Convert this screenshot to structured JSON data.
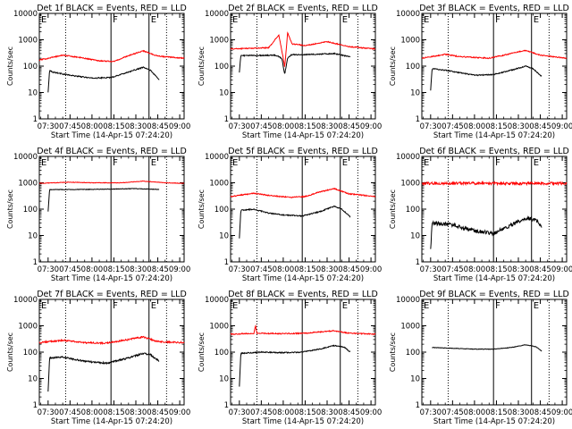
{
  "figure": {
    "background": "#ffffff",
    "axis_color": "#000000",
    "events_color": "#000000",
    "lld_color": "#ff0000",
    "x_ticks": [
      "07:30",
      "07:45",
      "08:00",
      "08:15",
      "08:30",
      "08:45",
      "09:00"
    ],
    "y_ticks": [
      "1",
      "10",
      "100",
      "1000",
      "10000"
    ],
    "ylabel": "Counts/sec",
    "xlabel": "Start Time (14-Apr-15 07:24:20)",
    "phase_labels": [
      "E",
      "F",
      "E"
    ]
  },
  "chart_data": [
    {
      "type": "line",
      "title": "Det 1f BLACK = Events, RED = LLD",
      "xlabel": "Start Time (14-Apr-15 07:24:20)",
      "ylabel": "Counts/sec",
      "xlim": [
        "07:24",
        "09:03"
      ],
      "ylim": [
        1,
        10000
      ],
      "yscale": "log",
      "markers": {
        "dotted": [
          "07:42",
          "08:51"
        ],
        "solid": [
          "08:13",
          "08:39"
        ]
      },
      "series": [
        {
          "color": "#000000",
          "noise": 0.02,
          "points": [
            [
              "07:30",
              10
            ],
            [
              "07:31",
              70
            ],
            [
              "07:33",
              60
            ],
            [
              "07:45",
              45
            ],
            [
              "08:00",
              35
            ],
            [
              "08:13",
              37
            ],
            [
              "08:25",
              60
            ],
            [
              "08:35",
              90
            ],
            [
              "08:40",
              70
            ],
            [
              "08:46",
              30
            ]
          ]
        },
        {
          "color": "#ff0000",
          "noise": 0.02,
          "points": [
            [
              "07:24",
              170
            ],
            [
              "07:40",
              260
            ],
            [
              "07:50",
              220
            ],
            [
              "08:05",
              160
            ],
            [
              "08:15",
              150
            ],
            [
              "08:25",
              250
            ],
            [
              "08:35",
              380
            ],
            [
              "08:45",
              240
            ],
            [
              "09:03",
              200
            ]
          ]
        }
      ]
    },
    {
      "type": "line",
      "title": "Det 2f BLACK = Events, RED = LLD",
      "xlabel": "Start Time (14-Apr-15 07:24:20)",
      "ylabel": "Counts/sec",
      "xlim": [
        "07:24",
        "09:03"
      ],
      "ylim": [
        1,
        10000
      ],
      "yscale": "log",
      "markers": {
        "dotted": [
          "07:42",
          "08:51"
        ],
        "solid": [
          "08:13",
          "08:39"
        ]
      },
      "series": [
        {
          "color": "#000000",
          "noise": 0.02,
          "points": [
            [
              "07:30",
              60
            ],
            [
              "07:31",
              250
            ],
            [
              "07:55",
              260
            ],
            [
              "07:59",
              200
            ],
            [
              "08:01",
              50
            ],
            [
              "08:03",
              200
            ],
            [
              "08:06",
              280
            ],
            [
              "08:13",
              270
            ],
            [
              "08:35",
              300
            ],
            [
              "08:42",
              250
            ],
            [
              "08:46",
              230
            ]
          ]
        },
        {
          "color": "#ff0000",
          "noise": 0.02,
          "points": [
            [
              "07:24",
              450
            ],
            [
              "07:50",
              500
            ],
            [
              "07:57",
              1500
            ],
            [
              "08:00",
              200
            ],
            [
              "08:01",
              90
            ],
            [
              "08:03",
              1800
            ],
            [
              "08:06",
              700
            ],
            [
              "08:15",
              600
            ],
            [
              "08:30",
              850
            ],
            [
              "08:45",
              550
            ],
            [
              "09:03",
              450
            ]
          ]
        }
      ]
    },
    {
      "type": "line",
      "title": "Det 3f BLACK = Events, RED = LLD",
      "xlabel": "Start Time (14-Apr-15 07:24:20)",
      "ylabel": "Counts/sec",
      "xlim": [
        "07:24",
        "09:03"
      ],
      "ylim": [
        1,
        10000
      ],
      "yscale": "log",
      "markers": {
        "dotted": [
          "07:42",
          "08:51"
        ],
        "solid": [
          "08:13",
          "08:39"
        ]
      },
      "series": [
        {
          "color": "#000000",
          "noise": 0.02,
          "points": [
            [
              "07:30",
              12
            ],
            [
              "07:31",
              80
            ],
            [
              "07:40",
              70
            ],
            [
              "08:00",
              45
            ],
            [
              "08:13",
              48
            ],
            [
              "08:25",
              70
            ],
            [
              "08:35",
              100
            ],
            [
              "08:40",
              80
            ],
            [
              "08:46",
              40
            ]
          ]
        },
        {
          "color": "#ff0000",
          "noise": 0.02,
          "points": [
            [
              "07:24",
              200
            ],
            [
              "07:40",
              280
            ],
            [
              "07:50",
              230
            ],
            [
              "08:10",
              200
            ],
            [
              "08:20",
              260
            ],
            [
              "08:35",
              400
            ],
            [
              "08:45",
              260
            ],
            [
              "09:03",
              200
            ]
          ]
        }
      ]
    },
    {
      "type": "line",
      "title": "Det 4f BLACK = Events, RED = LLD",
      "xlabel": "Start Time (14-Apr-15 07:24:20)",
      "ylabel": "Counts/sec",
      "xlim": [
        "07:24",
        "09:03"
      ],
      "ylim": [
        1,
        10000
      ],
      "yscale": "log",
      "markers": {
        "dotted": [
          "07:42",
          "08:51"
        ],
        "solid": [
          "08:13",
          "08:39"
        ]
      },
      "series": [
        {
          "color": "#000000",
          "noise": 0.01,
          "points": [
            [
              "07:30",
              80
            ],
            [
              "07:31",
              550
            ],
            [
              "08:00",
              560
            ],
            [
              "08:30",
              600
            ],
            [
              "08:46",
              560
            ]
          ]
        },
        {
          "color": "#ff0000",
          "noise": 0.01,
          "points": [
            [
              "07:24",
              950
            ],
            [
              "07:45",
              1050
            ],
            [
              "08:00",
              1000
            ],
            [
              "08:20",
              1000
            ],
            [
              "08:35",
              1150
            ],
            [
              "08:50",
              1000
            ],
            [
              "09:03",
              950
            ]
          ]
        }
      ]
    },
    {
      "type": "line",
      "title": "Det 5f BLACK = Events, RED = LLD",
      "xlabel": "Start Time (14-Apr-15 07:24:20)",
      "ylabel": "Counts/sec",
      "xlim": [
        "07:24",
        "09:03"
      ],
      "ylim": [
        1,
        10000
      ],
      "yscale": "log",
      "markers": {
        "dotted": [
          "07:42",
          "08:51"
        ],
        "solid": [
          "08:13",
          "08:39"
        ]
      },
      "series": [
        {
          "color": "#000000",
          "noise": 0.02,
          "points": [
            [
              "07:30",
              8
            ],
            [
              "07:31",
              90
            ],
            [
              "07:40",
              100
            ],
            [
              "07:50",
              70
            ],
            [
              "08:00",
              60
            ],
            [
              "08:13",
              55
            ],
            [
              "08:25",
              80
            ],
            [
              "08:35",
              130
            ],
            [
              "08:40",
              100
            ],
            [
              "08:46",
              50
            ]
          ]
        },
        {
          "color": "#ff0000",
          "noise": 0.02,
          "points": [
            [
              "07:24",
              300
            ],
            [
              "07:40",
              400
            ],
            [
              "07:50",
              330
            ],
            [
              "08:05",
              280
            ],
            [
              "08:15",
              300
            ],
            [
              "08:25",
              450
            ],
            [
              "08:35",
              600
            ],
            [
              "08:45",
              380
            ],
            [
              "09:03",
              300
            ]
          ]
        }
      ]
    },
    {
      "type": "line",
      "title": "Det 6f BLACK = Events, RED = LLD",
      "xlabel": "Start Time (14-Apr-15 07:24:20)",
      "ylabel": "Counts/sec",
      "xlim": [
        "07:24",
        "09:03"
      ],
      "ylim": [
        1,
        10000
      ],
      "yscale": "log",
      "markers": {
        "dotted": [
          "07:42",
          "08:51"
        ],
        "solid": [
          "08:13",
          "08:39"
        ]
      },
      "series": [
        {
          "color": "#000000",
          "noise": 0.07,
          "points": [
            [
              "07:30",
              3
            ],
            [
              "07:31",
              30
            ],
            [
              "07:45",
              25
            ],
            [
              "08:00",
              15
            ],
            [
              "08:13",
              12
            ],
            [
              "08:25",
              25
            ],
            [
              "08:35",
              45
            ],
            [
              "08:42",
              40
            ],
            [
              "08:46",
              20
            ]
          ]
        },
        {
          "color": "#ff0000",
          "noise": 0.05,
          "points": [
            [
              "07:24",
              950
            ],
            [
              "08:13",
              950
            ],
            [
              "09:03",
              950
            ]
          ]
        }
      ]
    },
    {
      "type": "line",
      "title": "Det 7f BLACK = Events, RED = LLD",
      "xlabel": "Start Time (14-Apr-15 07:24:20)",
      "ylabel": "Counts/sec",
      "xlim": [
        "07:24",
        "09:03"
      ],
      "ylim": [
        1,
        10000
      ],
      "yscale": "log",
      "markers": {
        "dotted": [
          "07:42",
          "08:51"
        ],
        "solid": [
          "08:13",
          "08:39"
        ]
      },
      "series": [
        {
          "color": "#000000",
          "noise": 0.03,
          "points": [
            [
              "07:30",
              3
            ],
            [
              "07:31",
              60
            ],
            [
              "07:40",
              65
            ],
            [
              "07:55",
              45
            ],
            [
              "08:10",
              38
            ],
            [
              "08:25",
              60
            ],
            [
              "08:35",
              90
            ],
            [
              "08:40",
              80
            ],
            [
              "08:46",
              45
            ]
          ]
        },
        {
          "color": "#ff0000",
          "noise": 0.03,
          "points": [
            [
              "07:24",
              230
            ],
            [
              "07:40",
              280
            ],
            [
              "07:55",
              230
            ],
            [
              "08:10",
              220
            ],
            [
              "08:25",
              300
            ],
            [
              "08:35",
              380
            ],
            [
              "08:45",
              250
            ],
            [
              "09:03",
              230
            ]
          ]
        }
      ]
    },
    {
      "type": "line",
      "title": "Det 8f BLACK = Events, RED = LLD",
      "xlabel": "Start Time (14-Apr-15 07:24:20)",
      "ylabel": "Counts/sec",
      "xlim": [
        "07:24",
        "09:03"
      ],
      "ylim": [
        1,
        10000
      ],
      "yscale": "log",
      "markers": {
        "dotted": [
          "07:42",
          "08:51"
        ],
        "solid": [
          "08:13",
          "08:39"
        ]
      },
      "series": [
        {
          "color": "#000000",
          "noise": 0.02,
          "points": [
            [
              "07:30",
              5
            ],
            [
              "07:31",
              90
            ],
            [
              "07:45",
              100
            ],
            [
              "08:00",
              95
            ],
            [
              "08:13",
              100
            ],
            [
              "08:25",
              130
            ],
            [
              "08:35",
              180
            ],
            [
              "08:42",
              150
            ],
            [
              "08:46",
              100
            ]
          ]
        },
        {
          "color": "#ff0000",
          "noise": 0.02,
          "points": [
            [
              "07:24",
              480
            ],
            [
              "07:40",
              520
            ],
            [
              "07:41",
              1000
            ],
            [
              "07:42",
              520
            ],
            [
              "08:00",
              500
            ],
            [
              "08:15",
              520
            ],
            [
              "08:35",
              650
            ],
            [
              "08:45",
              520
            ],
            [
              "09:03",
              480
            ]
          ]
        }
      ]
    },
    {
      "type": "line",
      "title": "Det 9f BLACK = Events, RED = LLD",
      "xlabel": "Start Time (14-Apr-15 07:24:20)",
      "ylabel": "Counts/sec",
      "xlim": [
        "07:24",
        "09:03"
      ],
      "ylim": [
        1,
        10000
      ],
      "yscale": "log",
      "markers": {
        "dotted": [
          "07:42",
          "08:51"
        ],
        "solid": [
          "08:13",
          "08:39"
        ]
      },
      "series": [
        {
          "color": "#000000",
          "noise": 0.01,
          "points": [
            [
              "07:31",
              150
            ],
            [
              "07:45",
              140
            ],
            [
              "08:00",
              130
            ],
            [
              "08:13",
              130
            ],
            [
              "08:25",
              150
            ],
            [
              "08:35",
              190
            ],
            [
              "08:42",
              160
            ],
            [
              "08:46",
              110
            ]
          ]
        }
      ]
    }
  ]
}
